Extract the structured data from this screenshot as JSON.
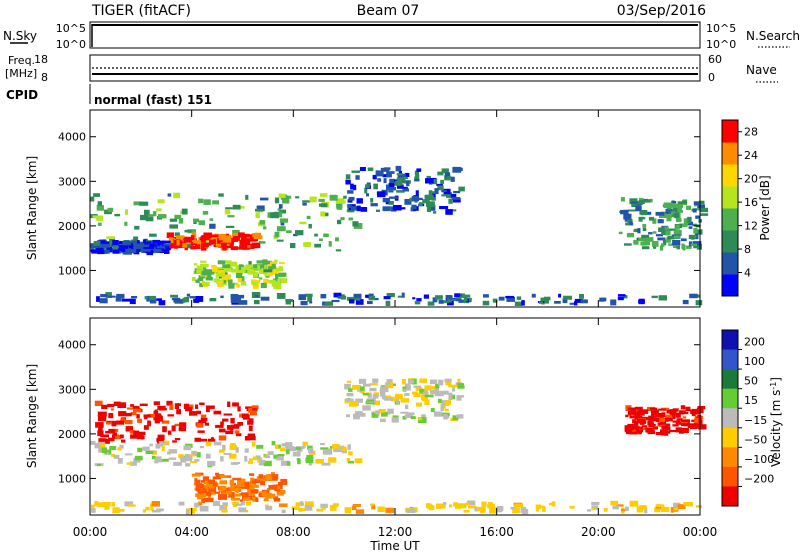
{
  "header": {
    "station": "TIGER (fitACF)",
    "beam": "Beam 07",
    "date": "03/Sep/2016"
  },
  "params": {
    "nsky_label": "N.Sky",
    "nsearch_label": "N.Search",
    "freq_label": "Freq.",
    "freq_unit": "[MHz]",
    "nave_label": "Nave",
    "cpid_label": "CPID",
    "cpid_value": "normal (fast) 151",
    "nsky_ticks": [
      "10^5",
      "10^0"
    ],
    "nsearch_ticks": [
      "10^5",
      "10^0"
    ],
    "freq_ticks": [
      "18",
      "8"
    ],
    "nave_ticks": [
      "60",
      "0"
    ]
  },
  "power_panel": {
    "ylabel": "Slant Range [km]",
    "yticks": [
      "4000",
      "3000",
      "2000",
      "1000"
    ],
    "cbar_label": "Power [dB]",
    "cbar_ticks": [
      "28",
      "24",
      "20",
      "16",
      "12",
      "8",
      "4"
    ]
  },
  "velocity_panel": {
    "ylabel": "Slant Range [km]",
    "yticks": [
      "4000",
      "3000",
      "2000",
      "1000"
    ],
    "cbar_label": "Velocity [m s",
    "cbar_sup": "-1",
    "cbar_ticks": [
      "200",
      "100",
      "50",
      "15",
      "−15",
      "−50",
      "−100",
      "−200"
    ]
  },
  "xaxis": {
    "label": "Time UT",
    "ticks": [
      "00:00",
      "04:00",
      "08:00",
      "12:00",
      "16:00",
      "20:00",
      "00:00"
    ]
  },
  "colors": {
    "power": [
      "#0000ff",
      "#2255aa",
      "#2e8b57",
      "#4caf50",
      "#b5e61d",
      "#ffd700",
      "#ff8c00",
      "#ff0000"
    ],
    "velocity": [
      "#1010b0",
      "#3355cc",
      "#1a7a3a",
      "#66cc33",
      "#bbbbbb",
      "#ffcc00",
      "#ff8800",
      "#ff5500",
      "#ee0000"
    ]
  },
  "chart_data": [
    {
      "type": "heatmap",
      "title": "Power",
      "xlabel": "Time UT",
      "ylabel": "Slant Range [km]",
      "xlim": [
        0,
        24
      ],
      "ylim": [
        180,
        4600
      ],
      "clim": [
        0,
        30
      ],
      "colorbar_label": "Power [dB]",
      "echo_regions": [
        {
          "t": [
            0.0,
            10.5
          ],
          "r": [
            1450,
            2700
          ],
          "db": 12
        },
        {
          "t": [
            3.0,
            6.5
          ],
          "r": [
            1500,
            1800
          ],
          "db": 28
        },
        {
          "t": [
            0.0,
            3.0
          ],
          "r": [
            1400,
            1650
          ],
          "db": 4
        },
        {
          "t": [
            4.0,
            7.5
          ],
          "r": [
            650,
            1200
          ],
          "db": 16
        },
        {
          "t": [
            10.0,
            14.5
          ],
          "r": [
            2300,
            3300
          ],
          "db": 6
        },
        {
          "t": [
            20.8,
            24.0
          ],
          "r": [
            1500,
            2600
          ],
          "db": 10
        },
        {
          "t": [
            0.0,
            24.0
          ],
          "r": [
            250,
            450
          ],
          "db": 6
        }
      ]
    },
    {
      "type": "heatmap",
      "title": "Velocity",
      "xlabel": "Time UT",
      "ylabel": "Slant Range [km]",
      "xlim": [
        0,
        24
      ],
      "ylim": [
        180,
        4600
      ],
      "clim": [
        -250,
        250
      ],
      "colorbar_label": "Velocity [m s-1]",
      "echo_regions": [
        {
          "t": [
            0.0,
            6.5
          ],
          "r": [
            1800,
            2700
          ],
          "v": -200
        },
        {
          "t": [
            0.0,
            10.5
          ],
          "r": [
            1300,
            1800
          ],
          "v": 0
        },
        {
          "t": [
            4.0,
            7.5
          ],
          "r": [
            500,
            1100
          ],
          "v": -100
        },
        {
          "t": [
            10.0,
            14.5
          ],
          "r": [
            2300,
            3200
          ],
          "v": 0
        },
        {
          "t": [
            21.0,
            24.0
          ],
          "r": [
            2000,
            2600
          ],
          "v": -200
        },
        {
          "t": [
            0.0,
            24.0
          ],
          "r": [
            250,
            450
          ],
          "v": -30
        }
      ]
    }
  ]
}
